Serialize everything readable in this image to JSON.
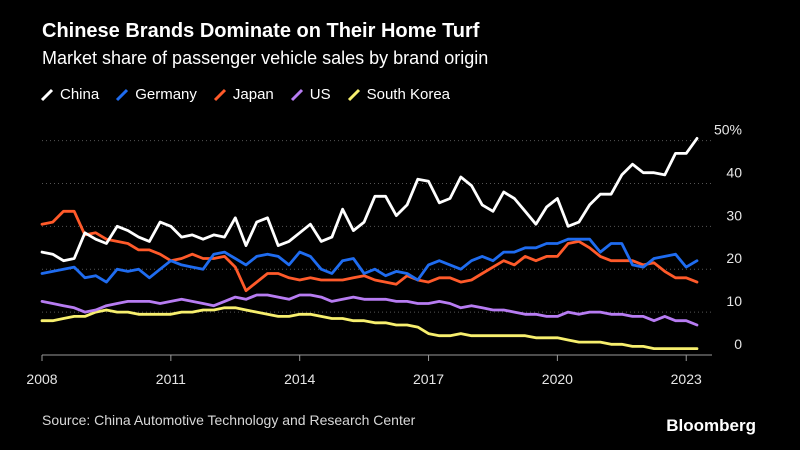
{
  "header": {
    "title": "Chinese Brands Dominate on Their Home Turf",
    "subtitle": "Market share of passenger vehicle sales by brand origin"
  },
  "footer": {
    "source": "Source: China Automotive Technology and Research Center",
    "brand": "Bloomberg"
  },
  "colors": {
    "China": "#ffffff",
    "Germany": "#1f6cf0",
    "Japan": "#ff5a2a",
    "US": "#b77cf2",
    "South Korea": "#f7ef6e"
  },
  "chart_data": {
    "type": "line",
    "title": "Chinese Brands Dominate on Their Home Turf",
    "subtitle": "Market share of passenger vehicle sales by brand origin",
    "xlabel": "",
    "ylabel": "",
    "x_start": 2008.0,
    "x_step": 0.25,
    "xlim": [
      2008,
      2023.6
    ],
    "ylim": [
      0,
      52
    ],
    "x_ticks": [
      2008,
      2011,
      2014,
      2017,
      2020,
      2023
    ],
    "y_ticks": [
      0,
      10,
      20,
      30,
      40,
      50
    ],
    "y_tick_labels": [
      "0",
      "10",
      "20",
      "30",
      "40",
      "50%"
    ],
    "grid": true,
    "legend": "top-left",
    "series": [
      {
        "name": "China",
        "values": [
          24,
          23.5,
          22,
          22.5,
          28.5,
          27,
          26,
          30,
          29,
          27.5,
          26.5,
          31,
          30,
          27.5,
          28,
          27,
          28,
          27.5,
          32,
          25.5,
          31,
          32,
          25.5,
          26.5,
          28.5,
          30.5,
          26.5,
          27.5,
          34,
          29,
          31,
          37,
          37,
          32.5,
          35,
          41,
          40.5,
          35.5,
          36.5,
          41.5,
          39.5,
          35,
          33.5,
          38,
          36.5,
          33.5,
          30.5,
          34.5,
          36.5,
          30,
          31,
          35,
          37.5,
          37.5,
          42,
          44.5,
          42.5,
          42.5,
          42,
          47,
          47,
          50.5
        ]
      },
      {
        "name": "Germany",
        "values": [
          19,
          19.5,
          20,
          20.5,
          18,
          18.5,
          17,
          20,
          19.5,
          20,
          18,
          20,
          22,
          21,
          20.5,
          20,
          23.5,
          24,
          22.5,
          21,
          23,
          23.5,
          23,
          21,
          24,
          23,
          20,
          19,
          22,
          22.5,
          19,
          20,
          18.5,
          19.5,
          19,
          17.5,
          21,
          22,
          21,
          20,
          22,
          23,
          22,
          24,
          24,
          25,
          25,
          26,
          26,
          27,
          27,
          27,
          24,
          26,
          26,
          21,
          20.5,
          22.5,
          23,
          23.5,
          20.5,
          22
        ]
      },
      {
        "name": "Japan",
        "values": [
          30.5,
          31,
          33.5,
          33.5,
          28,
          28.5,
          27,
          26.5,
          26,
          24.5,
          24.5,
          23.5,
          22,
          22.5,
          23.5,
          22.5,
          22.5,
          23,
          20.5,
          15,
          17,
          19,
          19,
          18,
          17.5,
          18,
          17.5,
          17.5,
          17.5,
          18,
          18.5,
          17.5,
          17,
          16.5,
          18.5,
          17.5,
          17,
          18,
          18,
          17,
          17.5,
          19,
          20.5,
          22,
          21,
          23,
          22,
          23,
          23,
          26,
          26.5,
          25,
          23,
          22,
          22,
          22,
          21,
          21.5,
          19.5,
          18,
          18,
          17
        ]
      },
      {
        "name": "US",
        "values": [
          12.5,
          12,
          11.5,
          11,
          10,
          10.5,
          11.5,
          12,
          12.5,
          12.5,
          12.5,
          12,
          12.5,
          13,
          12.5,
          12,
          11.5,
          12.5,
          13.5,
          13,
          14,
          14,
          13.5,
          13,
          14,
          14,
          13.5,
          12.5,
          13,
          13.5,
          13,
          13,
          13,
          12.5,
          12.5,
          12,
          12,
          12.5,
          12,
          11,
          11.5,
          11,
          10.5,
          10.5,
          10,
          9.5,
          9.5,
          9,
          9,
          10,
          9.5,
          10,
          10,
          9.5,
          9.5,
          9,
          9,
          8,
          9,
          8,
          8,
          7
        ]
      },
      {
        "name": "South Korea",
        "values": [
          8,
          8,
          8.5,
          9,
          9,
          10,
          10.5,
          10,
          10,
          9.5,
          9.5,
          9.5,
          9.5,
          10,
          10,
          10.5,
          10.5,
          11,
          11,
          10.5,
          10,
          9.5,
          9,
          9,
          9.5,
          9.5,
          9,
          8.5,
          8.5,
          8,
          8,
          7.5,
          7.5,
          7,
          7,
          6.5,
          5,
          4.5,
          4.5,
          5,
          4.5,
          4.5,
          4.5,
          4.5,
          4.5,
          4.5,
          4,
          4,
          4,
          3.5,
          3,
          3,
          3,
          2.5,
          2.5,
          2,
          2,
          1.5,
          1.5,
          1.5,
          1.5,
          1.5
        ]
      }
    ]
  }
}
